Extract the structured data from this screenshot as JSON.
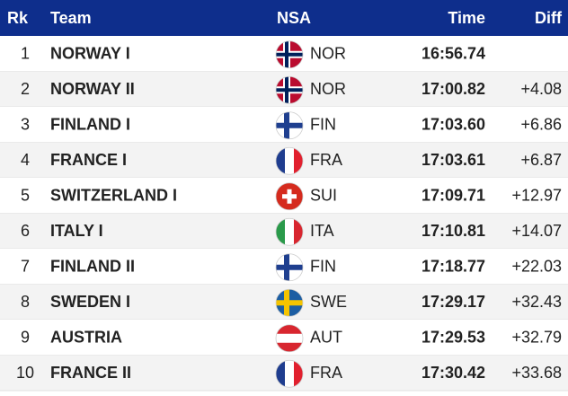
{
  "table": {
    "headers": [
      "Rk",
      "Team",
      "NSA",
      "Time",
      "Diff"
    ],
    "rows": [
      [
        "1",
        "NORWAY I",
        "NOR",
        "16:56.74",
        null
      ],
      [
        "2",
        "NORWAY II",
        "NOR",
        "17:00.82",
        "+4.08"
      ],
      [
        "3",
        "FINLAND I",
        "FIN",
        "17:03.60",
        "+6.86"
      ],
      [
        "4",
        "FRANCE I",
        "FRA",
        "17:03.61",
        "+6.87"
      ],
      [
        "5",
        "SWITZERLAND I",
        "SUI",
        "17:09.71",
        "+12.97"
      ],
      [
        "6",
        "ITALY I",
        "ITA",
        "17:10.81",
        "+14.07"
      ],
      [
        "7",
        "FINLAND II",
        "FIN",
        "17:18.77",
        "+22.03"
      ],
      [
        "8",
        "SWEDEN I",
        "SWE",
        "17:29.17",
        "+32.43"
      ],
      [
        "9",
        "AUSTRIA",
        "AUT",
        "17:29.53",
        "+32.79"
      ],
      [
        "10",
        "FRANCE II",
        "FRA",
        "17:30.42",
        "+33.68"
      ]
    ]
  }
}
